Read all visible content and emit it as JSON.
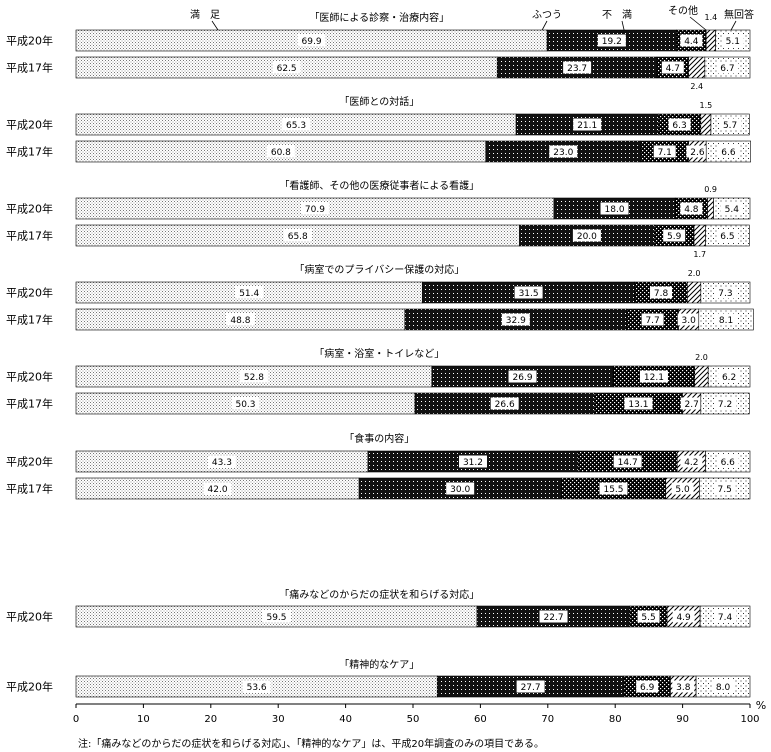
{
  "legend": {
    "labels": [
      "満　足",
      "ふつう",
      "不　満",
      "その他",
      "無回答"
    ]
  },
  "x_axis": {
    "ticks": [
      "0",
      "10",
      "20",
      "30",
      "40",
      "50",
      "60",
      "70",
      "80",
      "90",
      "100"
    ],
    "unit": "%"
  },
  "note": "注:「痛みなどのからだの症状を和らげる対応」、「精神的なケア」は、平成20年調査のみの項目である。",
  "chart_data": {
    "type": "bar",
    "orientation": "horizontal",
    "stacked": "percent",
    "xlim": [
      0,
      100
    ],
    "series_names": [
      "満　足",
      "ふつう",
      "不　満",
      "その他",
      "無回答"
    ],
    "groups": [
      {
        "title": "「医師による診察・治療内容」",
        "rows": [
          {
            "label": "平成20年",
            "values": [
              69.9,
              19.2,
              4.4,
              1.4,
              5.1
            ],
            "value_labels": [
              "69.9",
              "19.2",
              "4.4",
              "1.4",
              "5.1"
            ]
          },
          {
            "label": "平成17年",
            "values": [
              62.5,
              23.7,
              4.7,
              2.4,
              6.7
            ],
            "value_labels": [
              "62.5",
              "23.7",
              "4.7",
              "2.4",
              "6.7"
            ]
          }
        ]
      },
      {
        "title": "「医師との対話」",
        "rows": [
          {
            "label": "平成20年",
            "values": [
              65.3,
              21.1,
              6.3,
              1.5,
              5.7
            ],
            "value_labels": [
              "65.3",
              "21.1",
              "6.3",
              "1.5",
              "5.7"
            ]
          },
          {
            "label": "平成17年",
            "values": [
              60.8,
              23.0,
              7.1,
              2.6,
              6.6
            ],
            "value_labels": [
              "60.8",
              "23.0",
              "7.1",
              "2.6",
              "6.6"
            ]
          }
        ]
      },
      {
        "title": "「看護師、その他の医療従事者による看護」",
        "rows": [
          {
            "label": "平成20年",
            "values": [
              70.9,
              18.0,
              4.8,
              0.9,
              5.4
            ],
            "value_labels": [
              "70.9",
              "18.0",
              "4.8",
              "0.9",
              "5.4"
            ]
          },
          {
            "label": "平成17年",
            "values": [
              65.8,
              20.0,
              5.9,
              1.7,
              6.5
            ],
            "value_labels": [
              "65.8",
              "20.0",
              "5.9",
              "1.7",
              "6.5"
            ]
          }
        ]
      },
      {
        "title": "「病室でのプライバシー保護の対応」",
        "rows": [
          {
            "label": "平成20年",
            "values": [
              51.4,
              31.5,
              7.8,
              2.0,
              7.3
            ],
            "value_labels": [
              "51.4",
              "31.5",
              "7.8",
              "2.0",
              "7.3"
            ]
          },
          {
            "label": "平成17年",
            "values": [
              48.8,
              32.9,
              7.7,
              3.0,
              8.1
            ],
            "value_labels": [
              "48.8",
              "32.9",
              "7.7",
              "3.0",
              "8.1"
            ]
          }
        ]
      },
      {
        "title": "「病室・浴室・トイレなど」",
        "rows": [
          {
            "label": "平成20年",
            "values": [
              52.8,
              26.9,
              12.1,
              2.0,
              6.2
            ],
            "value_labels": [
              "52.8",
              "26.9",
              "12.1",
              "2.0",
              "6.2"
            ]
          },
          {
            "label": "平成17年",
            "values": [
              50.3,
              26.6,
              13.1,
              2.7,
              7.2
            ],
            "value_labels": [
              "50.3",
              "26.6",
              "13.1",
              "2.7",
              "7.2"
            ]
          }
        ]
      },
      {
        "title": "「食事の内容」",
        "rows": [
          {
            "label": "平成20年",
            "values": [
              43.3,
              31.2,
              14.7,
              4.2,
              6.6
            ],
            "value_labels": [
              "43.3",
              "31.2",
              "14.7",
              "4.2",
              "6.6"
            ]
          },
          {
            "label": "平成17年",
            "values": [
              42.0,
              30.0,
              15.5,
              5.0,
              7.5
            ],
            "value_labels": [
              "42.0",
              "30.0",
              "15.5",
              "5.0",
              "7.5"
            ]
          }
        ]
      },
      {
        "title": "「痛みなどのからだの症状を和らげる対応」",
        "rows": [
          {
            "label": "平成20年",
            "values": [
              59.5,
              22.7,
              5.5,
              4.9,
              7.4
            ],
            "value_labels": [
              "59.5",
              "22.7",
              "5.5",
              "4.9",
              "7.4"
            ]
          }
        ]
      },
      {
        "title": "「精神的なケア」",
        "rows": [
          {
            "label": "平成20年",
            "values": [
              53.6,
              27.7,
              6.9,
              3.8,
              8.0
            ],
            "value_labels": [
              "53.6",
              "27.7",
              "6.9",
              "3.8",
              "8.0"
            ]
          }
        ]
      }
    ]
  }
}
